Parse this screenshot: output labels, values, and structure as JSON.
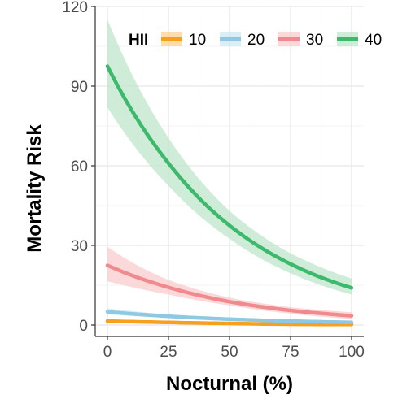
{
  "chart_data": {
    "type": "line",
    "title": "",
    "xlabel": "Nocturnal (%)",
    "ylabel": "Mortality Risk",
    "xlim": [
      0,
      100
    ],
    "ylim": [
      0,
      120
    ],
    "x_ticks": [
      "0",
      "25",
      "50",
      "75",
      "100"
    ],
    "y_ticks": [
      "0",
      "30",
      "60",
      "90",
      "120"
    ],
    "grid": true,
    "legend": {
      "title": "HII",
      "position": "top"
    },
    "x": [
      0,
      25,
      50,
      75,
      100
    ],
    "series": [
      {
        "name": "10",
        "color": "#f7a01d",
        "band_color": "#fbd28f",
        "values": [
          1.5,
          1.0,
          0.6,
          0.3,
          0.2
        ],
        "lower": [
          1.0,
          0.6,
          0.3,
          0.1,
          0.0
        ],
        "upper": [
          2.2,
          1.5,
          1.0,
          0.6,
          0.5
        ]
      },
      {
        "name": "20",
        "color": "#8ec8e3",
        "band_color": "#cfe7f2",
        "values": [
          5.0,
          3.3,
          2.2,
          1.5,
          1.0
        ],
        "lower": [
          4.0,
          2.7,
          1.7,
          1.0,
          0.6
        ],
        "upper": [
          6.3,
          4.0,
          2.8,
          2.0,
          1.6
        ]
      },
      {
        "name": "30",
        "color": "#f08a8e",
        "band_color": "#f9cccd",
        "values": [
          22.5,
          14.2,
          8.8,
          5.5,
          3.5
        ],
        "lower": [
          16.5,
          11.5,
          7.4,
          4.3,
          2.3
        ],
        "upper": [
          29.5,
          17.0,
          10.3,
          6.7,
          4.8
        ]
      },
      {
        "name": "40",
        "color": "#3cb96a",
        "band_color": "#bfe6cc",
        "values": [
          97.5,
          61.0,
          37.5,
          23.0,
          14.0
        ],
        "lower": [
          82.0,
          52.5,
          32.5,
          19.5,
          11.5
        ],
        "upper": [
          115.0,
          70.5,
          43.0,
          27.0,
          17.5
        ]
      }
    ]
  }
}
